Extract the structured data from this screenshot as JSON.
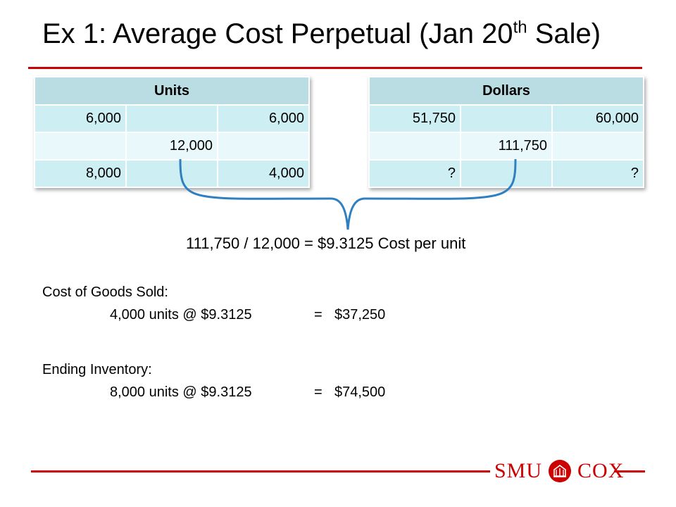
{
  "title": {
    "main": "Ex 1: Average Cost Perpetual (Jan 20",
    "sup": "th",
    "tail": " Sale)"
  },
  "units_table": {
    "header": "Units",
    "rows": [
      [
        "6,000",
        "",
        "6,000"
      ],
      [
        "",
        "12,000",
        ""
      ],
      [
        "8,000",
        "",
        "4,000"
      ]
    ]
  },
  "dollars_table": {
    "header": "Dollars",
    "rows": [
      [
        "51,750",
        "",
        "60,000"
      ],
      [
        "",
        "111,750",
        ""
      ],
      [
        "?",
        "",
        "?"
      ]
    ]
  },
  "formula": "111,750 / 12,000 = $9.3125 Cost per unit",
  "cogs": {
    "label": "Cost of Goods Sold:",
    "calc": "4,000 units @ $9.3125",
    "eq": "=",
    "result": "$37,250"
  },
  "ending_inventory": {
    "label": "Ending Inventory:",
    "calc": "8,000 units @ $9.3125",
    "eq": "=",
    "result": "$74,500"
  },
  "logo": {
    "left": "SMU",
    "right": "COX"
  },
  "colors": {
    "accent_red": "#cc0000",
    "table_header": "#b9dde3",
    "table_row_dark": "#cdeef2",
    "table_row_light": "#e8f8fb",
    "bracket_blue": "#2f7fc1"
  }
}
